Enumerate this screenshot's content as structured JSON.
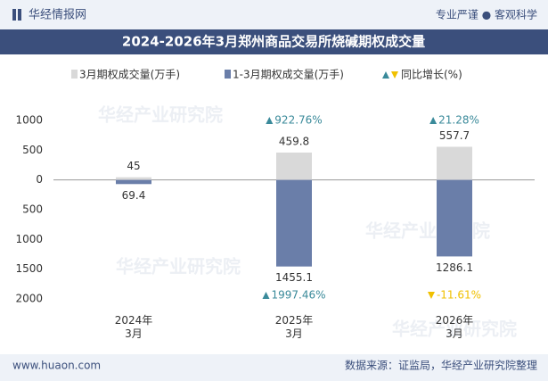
{
  "header": {
    "brand": "华经情报网",
    "slogan": "专业严谨 ● 客观科学"
  },
  "chart_data": {
    "type": "bar",
    "title": "2024-2026年3月郑州商品交易所烧碱期权成交量",
    "categories": [
      "2024年\n3月",
      "2025年\n3月",
      "2026年\n3月"
    ],
    "series": [
      {
        "name": "3月期权成交量(万手)",
        "color": "#d9d9d9",
        "values": [
          45,
          459.8,
          557.7
        ]
      },
      {
        "name": "1-3月期权成交量(万手)",
        "color": "#6a7ea9",
        "values": [
          -69.4,
          -1455.1,
          -1286.1
        ],
        "value_labels": [
          "69.4",
          "1455.1",
          "1286.1"
        ]
      }
    ],
    "growth": {
      "name": "同比增长(%)",
      "up_color": "#3a8a9a",
      "down_color": "#f0c000",
      "monthly": [
        null,
        922.76,
        21.28
      ],
      "monthly_labels": [
        null,
        "922.76%",
        "21.28%"
      ],
      "cumulative": [
        null,
        1997.46,
        -11.61
      ],
      "cumulative_labels": [
        null,
        "1997.46%",
        "-11.61%"
      ]
    },
    "ylim": [
      -2000,
      1000
    ],
    "yticks": [
      1000,
      500,
      0,
      {
        "value": -500,
        "label": "500"
      },
      {
        "value": -1000,
        "label": "1000"
      },
      {
        "value": -1500,
        "label": "1500"
      },
      {
        "value": -2000,
        "label": "2000"
      }
    ],
    "grid": false
  },
  "footer": {
    "website": "www.huaon.com",
    "source": "数据来源：证监局，华经产业研究院整理"
  },
  "watermark": "华经产业研究院"
}
